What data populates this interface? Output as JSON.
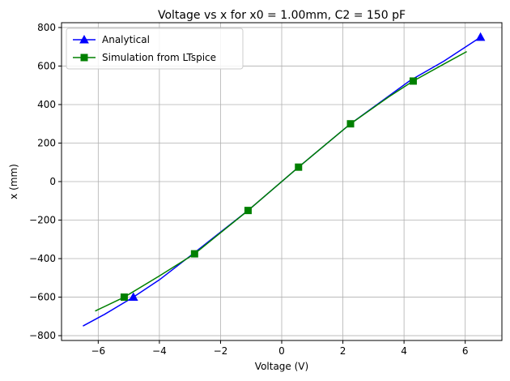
{
  "chart_data": {
    "type": "line",
    "title": "Voltage vs x for x0 = 1.00mm, C2 = 150 pF",
    "xlabel": "Voltage (V)",
    "ylabel": "x (mm)",
    "xlim": [
      -7.2,
      7.2
    ],
    "ylim": [
      -825,
      825
    ],
    "xticks": [
      -6,
      -4,
      -2,
      0,
      2,
      4,
      6
    ],
    "yticks": [
      -800,
      -600,
      -400,
      -200,
      0,
      200,
      400,
      600,
      800
    ],
    "grid": true,
    "legend_position": "top-left",
    "series": [
      {
        "name": "Analytical",
        "color": "#0000ff",
        "marker": "triangle",
        "x": [
          -6.5,
          -5.8,
          -4.85,
          -4.0,
          -2.9,
          -1.1,
          0.55,
          2.25,
          4.2,
          5.3,
          6.5
        ],
        "y": [
          -750,
          -690,
          -600,
          -510,
          -375,
          -150,
          75,
          300,
          525,
          625,
          750
        ],
        "marker_x": [
          -4.85,
          6.5
        ],
        "marker_y": [
          -600,
          750
        ]
      },
      {
        "name": "Simulation from LTspice",
        "color": "#008000",
        "marker": "square",
        "x": [
          -6.1,
          -5.15,
          -4.0,
          -2.85,
          -1.1,
          0.55,
          2.25,
          3.5,
          4.3,
          5.3,
          6.05
        ],
        "y": [
          -672,
          -600,
          -490,
          -375,
          -150,
          75,
          300,
          440,
          522,
          610,
          675
        ],
        "marker_x": [
          -5.15,
          -2.85,
          -1.1,
          0.55,
          2.25,
          4.3
        ],
        "marker_y": [
          -600,
          -375,
          -150,
          75,
          300,
          522
        ]
      }
    ]
  }
}
